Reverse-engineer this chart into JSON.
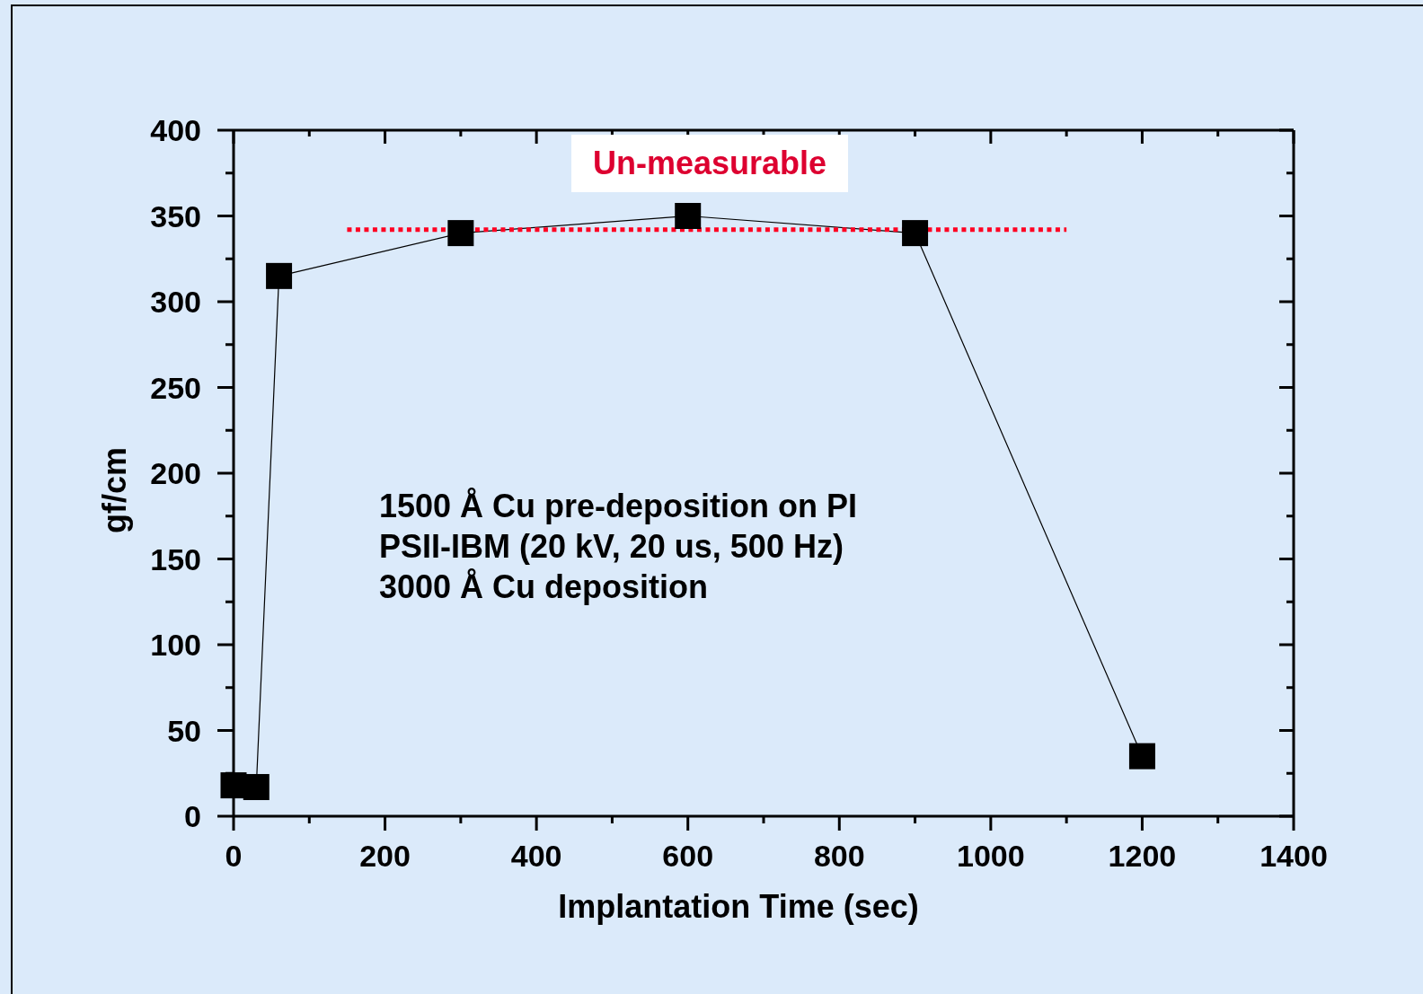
{
  "chart_data": {
    "type": "line",
    "xlabel": "Implantation Time (sec)",
    "ylabel": "gf/cm",
    "annotations": [
      "Un-measurable",
      "1500 Å Cu pre-deposition on PI",
      "PSII-IBM (20 kV, 20 us, 500 Hz)",
      "3000 Å Cu deposition"
    ],
    "x": [
      0,
      30,
      60,
      300,
      600,
      900,
      1200
    ],
    "marker": "square",
    "series": [
      {
        "color": "#000000",
        "values": [
          18,
          17,
          315,
          340,
          350,
          340,
          35
        ]
      },
      {
        "type": "line",
        "x": [
          150,
          1100
        ],
        "values": [
          342,
          342
        ],
        "color": "#ff0022",
        "line_style": "dotted",
        "marker": "none"
      }
    ],
    "xlim": [
      0,
      1400
    ],
    "xticks": [
      0,
      {
        "value": 100,
        "label": null
      },
      200,
      {
        "value": 300,
        "label": null
      },
      400,
      {
        "value": 500,
        "label": null
      },
      600,
      {
        "value": 700,
        "label": null
      },
      800,
      {
        "value": 900,
        "label": null
      },
      1000,
      {
        "value": 1100,
        "label": null
      },
      1200,
      {
        "value": 1300,
        "label": null
      },
      1400
    ],
    "ylim": [
      0,
      400
    ],
    "yticks": [
      0,
      {
        "value": 25,
        "label": null
      },
      50,
      {
        "value": 75,
        "label": null
      },
      100,
      {
        "value": 125,
        "label": null
      },
      150,
      {
        "value": 175,
        "label": null
      },
      200,
      {
        "value": 225,
        "label": null
      },
      250,
      {
        "value": 275,
        "label": null
      },
      300,
      {
        "value": 325,
        "label": null
      },
      350,
      {
        "value": 375,
        "label": null
      },
      400
    ]
  }
}
